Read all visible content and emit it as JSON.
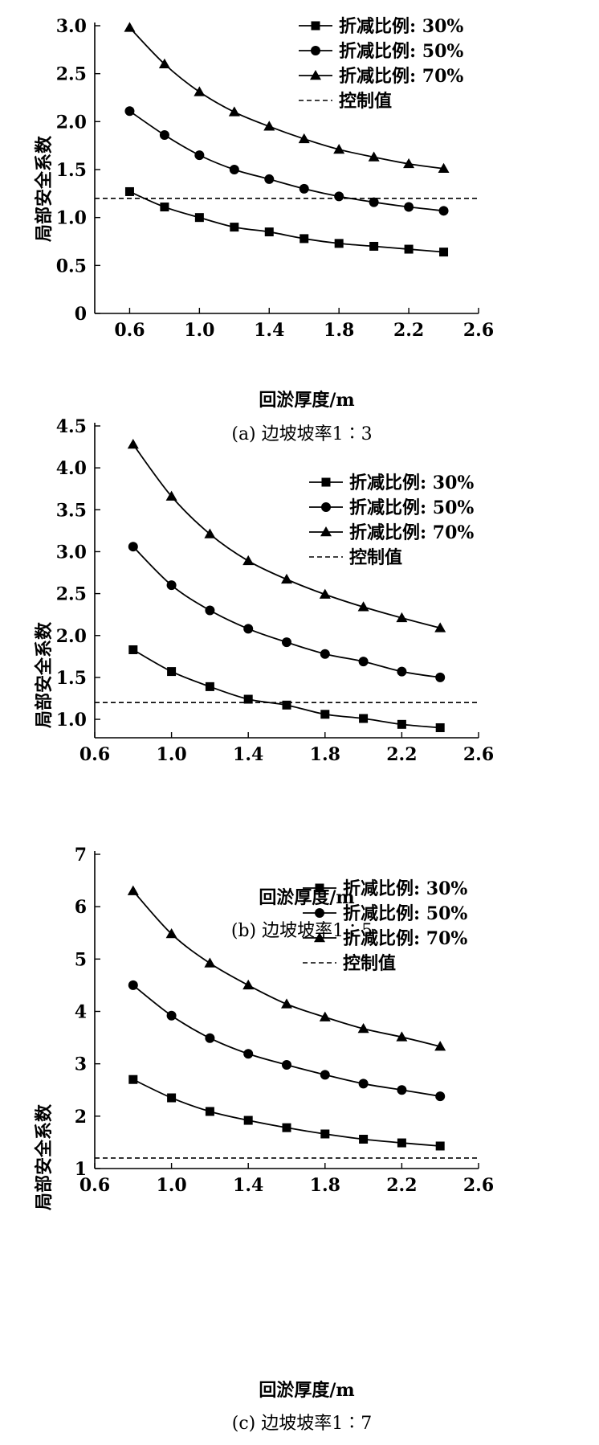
{
  "chart_data": [
    {
      "type": "line",
      "caption": "(a) 边坡坡率1∶3",
      "xlabel": "回淤厚度/m",
      "ylabel": "局部安全系数",
      "xlim": [
        0.4,
        2.6
      ],
      "ylim": [
        0,
        3.0
      ],
      "xticks": [
        0.6,
        1.0,
        1.4,
        1.8,
        2.2,
        2.6
      ],
      "xtick_labels": [
        "0.6",
        "1.0",
        "1.4",
        "1.8",
        "2.2",
        "2.6"
      ],
      "yticks": [
        0,
        0.5,
        1.0,
        1.5,
        2.0,
        2.5,
        3.0
      ],
      "ytick_labels": [
        "0",
        "0.5",
        "1.0",
        "1.5",
        "2.0",
        "2.5",
        "3.0"
      ],
      "legend_position": "top-right",
      "x": [
        0.6,
        0.8,
        1.0,
        1.2,
        1.4,
        1.6,
        1.8,
        2.0,
        2.2,
        2.4
      ],
      "series": [
        {
          "name": "折减比例: 30%",
          "marker": "square",
          "values": [
            1.27,
            1.11,
            1.0,
            0.9,
            0.85,
            0.78,
            0.73,
            0.7,
            0.67,
            0.64
          ]
        },
        {
          "name": "折减比例: 50%",
          "marker": "circle",
          "values": [
            2.11,
            1.86,
            1.65,
            1.5,
            1.4,
            1.3,
            1.22,
            1.16,
            1.11,
            1.07
          ]
        },
        {
          "name": "折减比例: 70%",
          "marker": "triangle",
          "values": [
            2.98,
            2.6,
            2.31,
            2.1,
            1.95,
            1.82,
            1.71,
            1.63,
            1.56,
            1.51
          ]
        }
      ],
      "control": {
        "name": "控制值",
        "value": 1.2
      }
    },
    {
      "type": "line",
      "caption": "(b) 边坡坡率1∶5",
      "xlabel": "回淤厚度/m",
      "ylabel": "局部安全系数",
      "xlim": [
        0.6,
        2.6
      ],
      "ylim": [
        0.78,
        4.5
      ],
      "xticks": [
        0.6,
        1.0,
        1.4,
        1.8,
        2.2,
        2.6
      ],
      "xtick_labels": [
        "0.6",
        "1.0",
        "1.4",
        "1.8",
        "2.2",
        "2.6"
      ],
      "yticks": [
        1.0,
        1.5,
        2.0,
        2.5,
        3.0,
        3.5,
        4.0,
        4.5
      ],
      "ytick_labels": [
        "1.0",
        "1.5",
        "2.0",
        "2.5",
        "3.0",
        "3.5",
        "4.0",
        "4.5"
      ],
      "legend_position": "right",
      "x": [
        0.8,
        1.0,
        1.2,
        1.4,
        1.6,
        1.8,
        2.0,
        2.2,
        2.4
      ],
      "series": [
        {
          "name": "折减比例: 30%",
          "marker": "square",
          "values": [
            1.83,
            1.57,
            1.39,
            1.24,
            1.17,
            1.06,
            1.01,
            0.94,
            0.9
          ]
        },
        {
          "name": "折减比例: 50%",
          "marker": "circle",
          "values": [
            3.06,
            2.6,
            2.3,
            2.08,
            1.92,
            1.78,
            1.69,
            1.57,
            1.5
          ]
        },
        {
          "name": "折减比例: 70%",
          "marker": "triangle",
          "values": [
            4.28,
            3.66,
            3.21,
            2.89,
            2.67,
            2.49,
            2.34,
            2.21,
            2.09
          ]
        }
      ],
      "control": {
        "name": "控制值",
        "value": 1.2
      }
    },
    {
      "type": "line",
      "caption": "(c) 边坡坡率1∶7",
      "xlabel": "回淤厚度/m",
      "ylabel": "局部安全系数",
      "xlim": [
        0.6,
        2.6
      ],
      "ylim": [
        1,
        7
      ],
      "xticks": [
        0.6,
        1.0,
        1.4,
        1.8,
        2.2,
        2.6
      ],
      "xtick_labels": [
        "0.6",
        "1.0",
        "1.4",
        "1.8",
        "2.2",
        "2.6"
      ],
      "yticks": [
        1,
        2,
        3,
        4,
        5,
        6,
        7
      ],
      "ytick_labels": [
        "1",
        "2",
        "3",
        "4",
        "5",
        "6",
        "7"
      ],
      "legend_position": "top-right",
      "x": [
        0.8,
        1.0,
        1.2,
        1.4,
        1.6,
        1.8,
        2.0,
        2.2,
        2.4
      ],
      "series": [
        {
          "name": "折减比例: 30%",
          "marker": "square",
          "values": [
            2.7,
            2.35,
            2.09,
            1.92,
            1.78,
            1.66,
            1.56,
            1.49,
            1.43
          ]
        },
        {
          "name": "折减比例: 50%",
          "marker": "circle",
          "values": [
            4.5,
            3.92,
            3.49,
            3.19,
            2.98,
            2.79,
            2.62,
            2.5,
            2.38
          ]
        },
        {
          "name": "折减比例: 70%",
          "marker": "triangle",
          "values": [
            6.3,
            5.48,
            4.92,
            4.5,
            4.14,
            3.89,
            3.67,
            3.51,
            3.33
          ]
        }
      ],
      "control": {
        "name": "控制值",
        "value": 1.2
      }
    }
  ]
}
